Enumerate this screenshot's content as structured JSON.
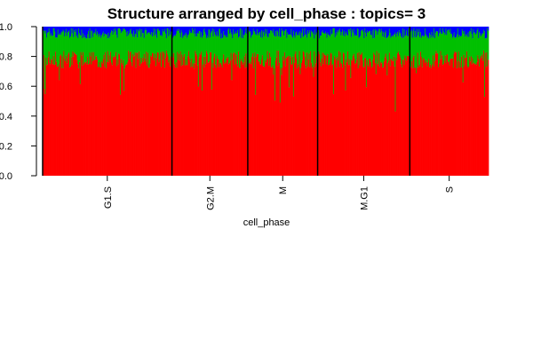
{
  "chart_data": {
    "type": "bar",
    "subtype": "stacked-structure-plot",
    "title": "Structure arranged by cell_phase : topics= 3",
    "xlabel": "cell_phase",
    "ylabel": "",
    "ylim": [
      0,
      1
    ],
    "yticks": [
      "0.0",
      "0.2",
      "0.4",
      "0.6",
      "0.8",
      "1.0"
    ],
    "categories": [
      "G1.S",
      "G2.M",
      "M",
      "M.G1",
      "S"
    ],
    "group_counts": [
      174,
      102,
      94,
      124,
      106
    ],
    "series": [
      {
        "color": "#ff0000",
        "typical_share": 0.78,
        "min_share": 0.17
      },
      {
        "color": "#00c000",
        "typical_share": 0.17
      },
      {
        "color": "#0000ff",
        "typical_share": 0.05
      }
    ],
    "grid": false,
    "legend": "none"
  }
}
